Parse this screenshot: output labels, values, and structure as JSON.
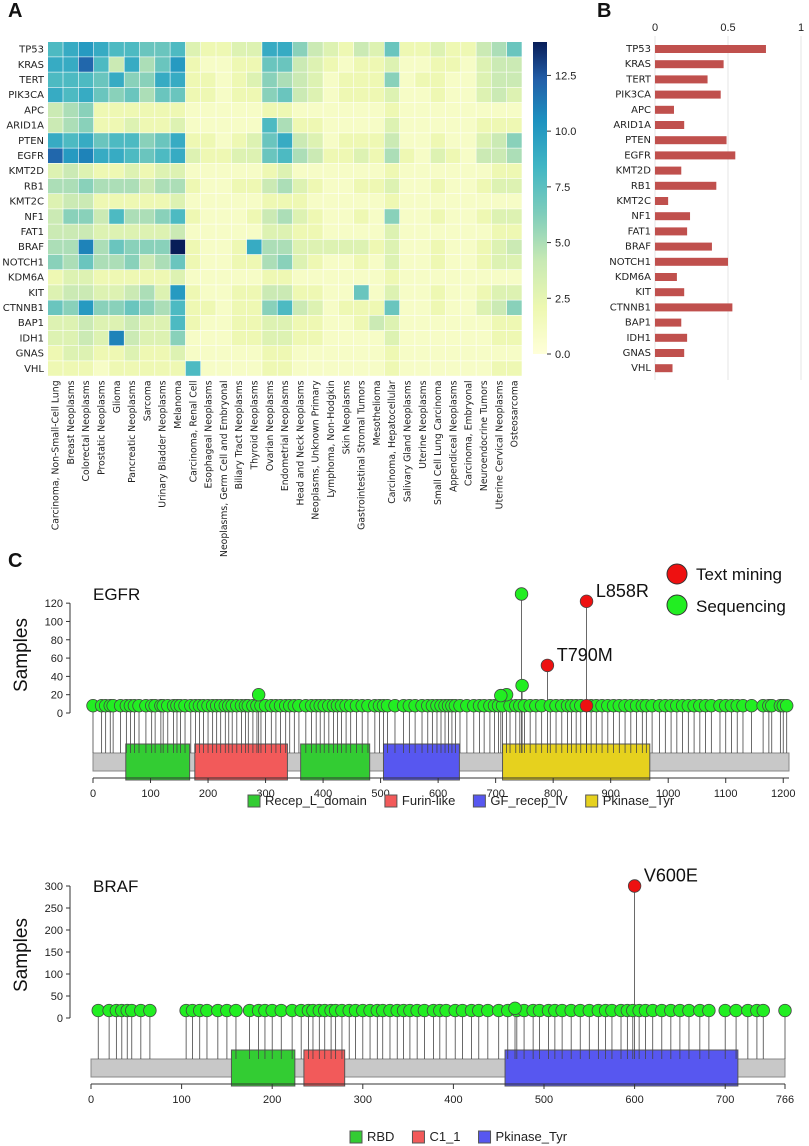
{
  "labels": {
    "panel_a": "A",
    "panel_b": "B",
    "panel_c": "C"
  },
  "chart_data": [
    {
      "type": "heatmap",
      "rows": [
        "TP53",
        "KRAS",
        "TERT",
        "PIK3CA",
        "APC",
        "ARID1A",
        "PTEN",
        "EGFR",
        "KMT2D",
        "RB1",
        "KMT2C",
        "NF1",
        "FAT1",
        "BRAF",
        "NOTCH1",
        "KDM6A",
        "KIT",
        "CTNNB1",
        "BAP1",
        "IDH1",
        "GNAS",
        "VHL"
      ],
      "columns": [
        "Carcinoma, Non-Small-Cell Lung",
        "Breast Neoplasms",
        "Colorectal Neoplasms",
        "Prostatic Neoplasms",
        "Glioma",
        "Pancreatic Neoplasms",
        "Sarcoma",
        "Urinary Bladder Neoplasms",
        "Melanoma",
        "Carcinoma, Renal Cell",
        "Esophageal Neoplasms",
        "Neoplasms, Germ Cell and Embryonal",
        "Biliary Tract Neoplasms",
        "Thyroid Neoplasms",
        "Ovarian Neoplasms",
        "Endometrial Neoplasms",
        "Head and Neck Neoplasms",
        "Neoplasms, Unknown Primary",
        "Lymphoma, Non-Hodgkin",
        "Skin Neoplasms",
        "Gastrointestinal Stromal Tumors",
        "Mesothelioma",
        "Carcinoma, Hepatocellular",
        "Salivary Gland Neoplasms",
        "Uterine Neoplasms",
        "Small Cell Lung Carcinoma",
        "Appendiceal Neoplasms",
        "Carcinoma, Embryonal",
        "Neuroendocrine Tumors",
        "Uterine Cervical Neoplasms",
        "Osteosarcoma"
      ],
      "values": [
        [
          8,
          9,
          10,
          9,
          8,
          8,
          7,
          7,
          8,
          3,
          2,
          2,
          3,
          3,
          9,
          9,
          6,
          4,
          3,
          2,
          4,
          3,
          7,
          2,
          2,
          3,
          2,
          2,
          4,
          5,
          7
        ],
        [
          9,
          9,
          12,
          8,
          4,
          9,
          5,
          7,
          10,
          2,
          1,
          1,
          2,
          2,
          7,
          7,
          4,
          3,
          2,
          1,
          2,
          2,
          3,
          1,
          1,
          2,
          2,
          1,
          3,
          4,
          4
        ],
        [
          8,
          8,
          8,
          7,
          9,
          6,
          6,
          9,
          9,
          2,
          2,
          1,
          2,
          3,
          6,
          5,
          4,
          3,
          1,
          2,
          2,
          2,
          6,
          1,
          2,
          2,
          1,
          1,
          3,
          4,
          4
        ],
        [
          9,
          8,
          9,
          7,
          6,
          7,
          5,
          7,
          7,
          2,
          2,
          1,
          2,
          2,
          6,
          7,
          4,
          3,
          1,
          2,
          2,
          2,
          3,
          1,
          1,
          2,
          1,
          1,
          3,
          4,
          3
        ],
        [
          4,
          5,
          6,
          2,
          2,
          2,
          2,
          2,
          2,
          1,
          1,
          1,
          1,
          1,
          2,
          2,
          1,
          1,
          1,
          1,
          1,
          1,
          2,
          1,
          1,
          1,
          1,
          1,
          1,
          1,
          1
        ],
        [
          4,
          5,
          6,
          2,
          2,
          3,
          2,
          2,
          3,
          1,
          1,
          1,
          1,
          1,
          8,
          5,
          2,
          2,
          1,
          1,
          1,
          1,
          3,
          1,
          1,
          1,
          1,
          1,
          2,
          2,
          2
        ],
        [
          9,
          8,
          9,
          7,
          8,
          8,
          6,
          7,
          9,
          2,
          2,
          1,
          2,
          3,
          7,
          9,
          4,
          3,
          1,
          2,
          2,
          2,
          4,
          1,
          1,
          2,
          1,
          1,
          3,
          4,
          6
        ],
        [
          12,
          10,
          11,
          9,
          9,
          8,
          7,
          8,
          9,
          3,
          2,
          2,
          3,
          3,
          7,
          8,
          5,
          4,
          2,
          2,
          3,
          2,
          5,
          2,
          1,
          3,
          2,
          1,
          4,
          4,
          5
        ],
        [
          3,
          4,
          3,
          2,
          2,
          3,
          2,
          3,
          3,
          1,
          1,
          1,
          1,
          1,
          2,
          3,
          1,
          1,
          1,
          1,
          1,
          1,
          2,
          1,
          1,
          1,
          1,
          1,
          1,
          2,
          2
        ],
        [
          5,
          5,
          6,
          5,
          5,
          5,
          4,
          5,
          5,
          2,
          1,
          1,
          2,
          2,
          4,
          5,
          3,
          2,
          1,
          1,
          2,
          2,
          3,
          1,
          1,
          2,
          1,
          1,
          2,
          3,
          3
        ],
        [
          3,
          4,
          4,
          2,
          2,
          2,
          2,
          2,
          3,
          1,
          1,
          1,
          1,
          1,
          2,
          2,
          2,
          1,
          1,
          1,
          1,
          1,
          2,
          1,
          1,
          1,
          1,
          1,
          1,
          1,
          1
        ],
        [
          4,
          6,
          6,
          4,
          8,
          5,
          5,
          6,
          8,
          2,
          1,
          1,
          1,
          2,
          4,
          5,
          3,
          2,
          1,
          1,
          2,
          1,
          6,
          1,
          1,
          2,
          1,
          1,
          2,
          3,
          3
        ],
        [
          4,
          4,
          4,
          3,
          3,
          3,
          3,
          3,
          4,
          1,
          1,
          1,
          1,
          1,
          3,
          3,
          2,
          2,
          1,
          1,
          1,
          1,
          3,
          1,
          1,
          1,
          1,
          1,
          1,
          2,
          2
        ],
        [
          5,
          5,
          11,
          5,
          7,
          6,
          6,
          6,
          14,
          2,
          1,
          1,
          2,
          9,
          5,
          5,
          3,
          3,
          3,
          3,
          3,
          2,
          3,
          1,
          1,
          2,
          1,
          1,
          2,
          3,
          4
        ],
        [
          6,
          5,
          7,
          5,
          5,
          6,
          4,
          5,
          7,
          2,
          1,
          1,
          2,
          2,
          5,
          6,
          3,
          2,
          1,
          1,
          2,
          1,
          3,
          1,
          1,
          2,
          1,
          1,
          2,
          3,
          3
        ],
        [
          2,
          3,
          3,
          2,
          2,
          2,
          2,
          2,
          3,
          1,
          1,
          1,
          1,
          1,
          2,
          2,
          1,
          1,
          1,
          1,
          1,
          1,
          2,
          1,
          1,
          1,
          1,
          1,
          1,
          1,
          1
        ],
        [
          3,
          4,
          4,
          3,
          3,
          4,
          5,
          3,
          10,
          2,
          1,
          1,
          2,
          2,
          4,
          4,
          2,
          2,
          1,
          1,
          7,
          1,
          3,
          1,
          1,
          2,
          1,
          1,
          2,
          3,
          3
        ],
        [
          7,
          6,
          10,
          6,
          6,
          7,
          6,
          5,
          8,
          2,
          2,
          1,
          2,
          2,
          6,
          8,
          4,
          3,
          1,
          2,
          2,
          2,
          7,
          1,
          1,
          2,
          1,
          1,
          3,
          4,
          6
        ],
        [
          3,
          3,
          4,
          3,
          3,
          4,
          3,
          3,
          8,
          2,
          1,
          1,
          2,
          2,
          3,
          3,
          2,
          2,
          1,
          1,
          2,
          4,
          3,
          1,
          1,
          1,
          1,
          1,
          1,
          2,
          2
        ],
        [
          3,
          3,
          4,
          3,
          11,
          4,
          3,
          3,
          6,
          1,
          1,
          1,
          2,
          2,
          3,
          3,
          2,
          2,
          1,
          1,
          1,
          1,
          3,
          1,
          1,
          1,
          1,
          1,
          1,
          2,
          2
        ],
        [
          2,
          3,
          3,
          2,
          2,
          3,
          2,
          2,
          3,
          1,
          1,
          1,
          1,
          1,
          2,
          2,
          1,
          1,
          1,
          1,
          1,
          1,
          2,
          1,
          1,
          1,
          1,
          1,
          1,
          1,
          1
        ],
        [
          2,
          2,
          2,
          1,
          2,
          2,
          2,
          2,
          2,
          8,
          1,
          1,
          1,
          1,
          2,
          2,
          1,
          1,
          1,
          1,
          1,
          1,
          2,
          1,
          1,
          1,
          1,
          1,
          1,
          2,
          2
        ]
      ],
      "colorbar": {
        "ticks": [
          "0.0",
          "2.5",
          "5.0",
          "7.5",
          "10.0",
          "12.5"
        ],
        "min": 0,
        "max": 14
      }
    },
    {
      "type": "bar",
      "categories": [
        "TP53",
        "KRAS",
        "TERT",
        "PIK3CA",
        "APC",
        "ARID1A",
        "PTEN",
        "EGFR",
        "KMT2D",
        "RB1",
        "KMT2C",
        "NF1",
        "FAT1",
        "BRAF",
        "NOTCH1",
        "KDM6A",
        "KIT",
        "CTNNB1",
        "BAP1",
        "IDH1",
        "GNAS",
        "VHL"
      ],
      "values": [
        0.76,
        0.47,
        0.36,
        0.45,
        0.13,
        0.2,
        0.49,
        0.55,
        0.18,
        0.42,
        0.09,
        0.24,
        0.22,
        0.39,
        0.5,
        0.15,
        0.2,
        0.53,
        0.18,
        0.22,
        0.2,
        0.12
      ],
      "xlim": [
        0,
        1
      ],
      "ticks": [
        "0",
        "0.5",
        "1"
      ],
      "color": "#c0504d"
    },
    {
      "type": "lollipop",
      "gene": "EGFR",
      "ylabel": "Samples",
      "ylim": [
        0,
        130
      ],
      "yticks": [
        "0",
        "20",
        "40",
        "60",
        "80",
        "100",
        "120"
      ],
      "length": 1210,
      "xticks": [
        "0",
        "100",
        "200",
        "300",
        "400",
        "500",
        "600",
        "700",
        "800",
        "900",
        "1000",
        "1100",
        "1200"
      ],
      "domains": [
        {
          "name": "Recep_L_domain",
          "start": 57,
          "end": 168,
          "color": "#33cc33"
        },
        {
          "name": "Furin-like",
          "start": 177,
          "end": 338,
          "color": "#f25a5a"
        },
        {
          "name": "Recep_L_domain",
          "start": 361,
          "end": 481,
          "color": "#33cc33"
        },
        {
          "name": "GF_recep_IV",
          "start": 505,
          "end": 637,
          "color": "#5757f0"
        },
        {
          "name": "Pkinase_Tyr",
          "start": 712,
          "end": 968,
          "color": "#e6d11e"
        }
      ],
      "legend": [
        {
          "name": "Recep_L_domain",
          "color": "#33cc33"
        },
        {
          "name": "Furin-like",
          "color": "#f25a5a"
        },
        {
          "name": "GF_recep_IV",
          "color": "#5757f0"
        },
        {
          "name": "Pkinase_Tyr",
          "color": "#e6d11e"
        }
      ],
      "annotated": [
        {
          "label": "L858R",
          "pos": 858,
          "count": 122,
          "source": "text_mining"
        },
        {
          "label": "T790M",
          "pos": 790,
          "count": 52,
          "source": "text_mining"
        },
        {
          "label": "",
          "pos": 745,
          "count": 130,
          "source": "sequencing"
        },
        {
          "label": "",
          "pos": 746,
          "count": 30,
          "source": "sequencing"
        },
        {
          "label": "",
          "pos": 719,
          "count": 20,
          "source": "sequencing"
        },
        {
          "label": "",
          "pos": 288,
          "count": 20,
          "source": "sequencing"
        },
        {
          "label": "",
          "pos": 709,
          "count": 19,
          "source": "sequencing"
        },
        {
          "label": "",
          "pos": 858,
          "count": 8,
          "source": "text_mining"
        }
      ],
      "baseline_count": 8,
      "baseline_positions": [
        0,
        15,
        22,
        30,
        35,
        48,
        58,
        65,
        72,
        80,
        92,
        102,
        108,
        118,
        122,
        130,
        140,
        146,
        152,
        160,
        170,
        178,
        185,
        192,
        200,
        208,
        215,
        222,
        230,
        236,
        242,
        250,
        258,
        265,
        270,
        278,
        285,
        292,
        300,
        310,
        318,
        326,
        335,
        342,
        350,
        358,
        370,
        380,
        388,
        395,
        402,
        410,
        418,
        425,
        432,
        440,
        448,
        458,
        468,
        478,
        490,
        498,
        505,
        512,
        525,
        540,
        550,
        560,
        572,
        582,
        590,
        598,
        605,
        612,
        618,
        624,
        630,
        638,
        650,
        662,
        672,
        680,
        690,
        698,
        705,
        712,
        725,
        735,
        742,
        750,
        760,
        770,
        780,
        795,
        805,
        815,
        825,
        832,
        840,
        848,
        866,
        875,
        885,
        895,
        905,
        915,
        925,
        935,
        945,
        955,
        962,
        972,
        985,
        995,
        1005,
        1015,
        1025,
        1035,
        1045,
        1055,
        1065,
        1075,
        1090,
        1100,
        1110,
        1120,
        1130,
        1145,
        1165,
        1175,
        1180,
        1195,
        1200,
        1206
      ]
    },
    {
      "type": "lollipop",
      "gene": "BRAF",
      "ylabel": "Samples",
      "ylim": [
        0,
        300
      ],
      "yticks": [
        "0",
        "50",
        "100",
        "150",
        "200",
        "250",
        "300"
      ],
      "length": 766,
      "xticks": [
        "0",
        "100",
        "200",
        "300",
        "400",
        "500",
        "600",
        "700",
        "766"
      ],
      "domains": [
        {
          "name": "RBD",
          "start": 155,
          "end": 225,
          "color": "#33cc33"
        },
        {
          "name": "C1_1",
          "start": 235,
          "end": 280,
          "color": "#f25a5a"
        },
        {
          "name": "Pkinase_Tyr",
          "start": 457,
          "end": 714,
          "color": "#5757f0"
        }
      ],
      "legend": [
        {
          "name": "RBD",
          "color": "#33cc33"
        },
        {
          "name": "C1_1",
          "color": "#f25a5a"
        },
        {
          "name": "Pkinase_Tyr",
          "color": "#5757f0"
        }
      ],
      "annotated": [
        {
          "label": "V600E",
          "pos": 600,
          "count": 300,
          "source": "text_mining"
        },
        {
          "label": "",
          "pos": 468,
          "count": 22,
          "source": "sequencing"
        }
      ],
      "baseline_count": 17,
      "baseline_positions": [
        8,
        20,
        28,
        34,
        40,
        45,
        55,
        65,
        105,
        112,
        120,
        128,
        140,
        150,
        160,
        175,
        185,
        192,
        200,
        210,
        222,
        232,
        240,
        245,
        252,
        258,
        265,
        270,
        277,
        285,
        292,
        300,
        308,
        316,
        322,
        330,
        338,
        345,
        352,
        360,
        368,
        378,
        385,
        392,
        402,
        410,
        420,
        428,
        438,
        450,
        460,
        470,
        478,
        488,
        495,
        505,
        512,
        520,
        530,
        540,
        550,
        560,
        568,
        575,
        585,
        592,
        598,
        605,
        612,
        620,
        630,
        640,
        650,
        660,
        672,
        682,
        700,
        712,
        725,
        735,
        742,
        766
      ]
    }
  ],
  "legend_c": {
    "text_mining": "Text mining",
    "sequencing": "Sequencing",
    "text_mining_color": "#ee1111",
    "sequencing_color": "#22ee22"
  }
}
